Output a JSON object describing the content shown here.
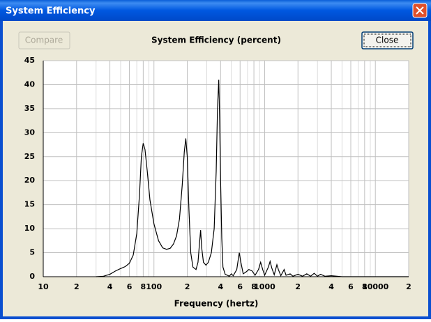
{
  "window": {
    "title": "System Efficiency"
  },
  "buttons": {
    "compare": "Compare",
    "close": "Close"
  },
  "chart_data": {
    "type": "line",
    "title": "System Efficiency (percent)",
    "x_label": "Frequency (hertz)",
    "xscale": "log",
    "grid": true,
    "xlim": [
      10,
      20000
    ],
    "ylim": [
      0,
      45
    ],
    "xticks": [
      10,
      {
        "value": 20,
        "label": "2"
      },
      {
        "value": 40,
        "label": "4"
      },
      {
        "value": 60,
        "label": "6"
      },
      {
        "value": 80,
        "label": "8"
      },
      100,
      {
        "value": 200,
        "label": "2"
      },
      {
        "value": 400,
        "label": "4"
      },
      {
        "value": 600,
        "label": "6"
      },
      {
        "value": 800,
        "label": "8"
      },
      1000,
      {
        "value": 2000,
        "label": "2"
      },
      {
        "value": 4000,
        "label": "4"
      },
      {
        "value": 6000,
        "label": "6"
      },
      {
        "value": 8000,
        "label": "8"
      },
      10000,
      {
        "value": 20000,
        "label": "2"
      }
    ],
    "xminorticks": [
      30,
      50,
      70,
      90,
      300,
      500,
      700,
      900,
      3000,
      5000,
      7000,
      9000
    ],
    "yticks": [
      0,
      5,
      10,
      15,
      20,
      25,
      30,
      35,
      40,
      45
    ],
    "x": [
      30,
      35,
      40,
      45,
      50,
      55,
      60,
      65,
      70,
      74,
      77,
      80,
      83,
      87,
      92,
      100,
      110,
      120,
      130,
      140,
      150,
      160,
      170,
      180,
      188,
      194,
      200,
      207,
      215,
      225,
      240,
      250,
      258,
      264,
      270,
      280,
      295,
      310,
      330,
      350,
      365,
      375,
      385,
      392,
      400,
      410,
      420,
      440,
      480,
      500,
      520,
      560,
      590,
      610,
      640,
      680,
      720,
      770,
      820,
      880,
      920,
      960,
      1000,
      1080,
      1120,
      1160,
      1220,
      1290,
      1330,
      1400,
      1500,
      1560,
      1700,
      1800,
      2000,
      2200,
      2400,
      2600,
      2800,
      3000,
      3200,
      3500,
      4000,
      5000,
      20000
    ],
    "series": [
      {
        "color": "#000000",
        "values": [
          0,
          0.1,
          0.5,
          1.2,
          1.7,
          2.1,
          2.8,
          4.5,
          9,
          17,
          25,
          27.8,
          26.5,
          22,
          16,
          11,
          7.5,
          6,
          5.7,
          5.9,
          6.8,
          8.5,
          12,
          19,
          26,
          28.8,
          25,
          14,
          5,
          2,
          1.5,
          3,
          7,
          9.7,
          6,
          3,
          2.4,
          3,
          5,
          10,
          22,
          35,
          41,
          33,
          20,
          8,
          2,
          0.5,
          0.1,
          0.6,
          0.2,
          1.5,
          5,
          3,
          0.6,
          1,
          1.5,
          1.2,
          0.3,
          1.5,
          3,
          1.5,
          0.3,
          2,
          3.2,
          1.8,
          0.4,
          2.5,
          1.5,
          0.2,
          1.5,
          0.3,
          0.6,
          0.1,
          0.5,
          0.1,
          0.6,
          0.1,
          0.7,
          0.1,
          0.5,
          0.1,
          0.2,
          0,
          0
        ]
      }
    ]
  }
}
